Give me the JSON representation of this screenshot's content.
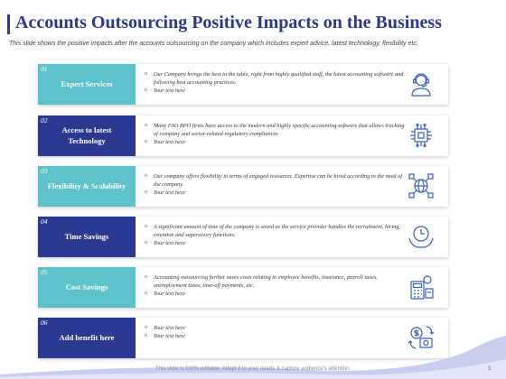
{
  "title": "Accounts Outsourcing Positive Impacts on the Business",
  "subtitle": "This slide shows the positive impacts after the accounts outsourcing on the company which includes expert advice, latest technology, flexibility etc.",
  "rows": [
    {
      "number": "01",
      "label": "Expert Services",
      "icon": "support-agent-icon",
      "bullets": [
        "Our Company brings the best to the table, right from highly qualified staff, the latest accounting software and following best accounting practices.",
        "Your  text here"
      ]
    },
    {
      "number": "02",
      "label": "Access to latest Technology",
      "icon": "circuit-chip-icon",
      "bullets": [
        "Many FAO BPO firms have access to the modern and highly specific accounting software that allows tracking of company and sector-related  regulatory compliances",
        "Your text here"
      ]
    },
    {
      "number": "03",
      "label": "Flexibility & Scalability",
      "icon": "network-globe-icon",
      "bullets": [
        "Our company offers flexibility in terms of engaged resources. Expertise can be hired according to the need of the company.",
        "Your text here"
      ]
    },
    {
      "number": "04",
      "label": "Time Savings",
      "icon": "clock-hands-icon",
      "bullets": [
        "A significant amount of time of the company is saved as the service provider handles the recruitment,  hiring, retention and supervisory functions.",
        "Your text here"
      ]
    },
    {
      "number": "05",
      "label": "Cost Savings",
      "icon": "calculator-money-icon",
      "bullets": [
        "Accounting outsourcing further saves costs relating to employee benefits, insurance, payroll taxes, unemployment  taxes, time-off payments, etc.",
        "Your text here"
      ]
    },
    {
      "number": "06",
      "label": "Add benefit here",
      "icon": "dollar-exchange-icon",
      "bullets": [
        "Your text here",
        "Your text here"
      ]
    }
  ],
  "footer": "This slide is 100% editable. Adapt it to your needs & capture audience's attention.",
  "page_number": "1",
  "colors": {
    "accent_dark": "#2b3990",
    "accent_light": "#5bc3c9",
    "icon_blue": "#3a5fc4"
  }
}
